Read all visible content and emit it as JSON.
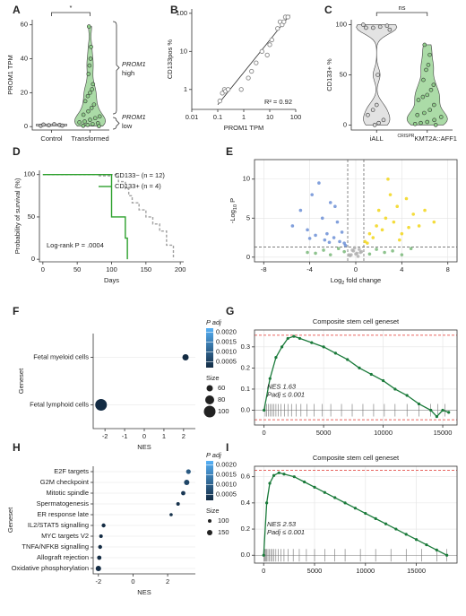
{
  "chart_data": [
    {
      "type": "violin",
      "panel": "A",
      "ylabel": "PROM1 TPM",
      "categories": [
        "Control",
        "Transformed"
      ],
      "colors": [
        "#bdbdbd",
        "#8fcf8a"
      ],
      "values": [
        [
          0.5,
          1,
          1.4,
          0.8,
          1.2,
          0.6
        ],
        [
          59,
          47,
          40,
          36,
          31,
          25,
          22,
          20,
          18,
          15,
          13,
          11,
          9,
          7,
          6,
          5,
          4,
          3,
          2.5,
          2,
          1.5,
          1,
          0.5,
          0.3
        ]
      ],
      "ylim": [
        -2,
        63
      ],
      "yticks": [
        0,
        20,
        40,
        60
      ],
      "significance": "*",
      "brace_labels": [
        [
          "PROM1",
          "high"
        ],
        [
          "PROM1",
          "low"
        ]
      ]
    },
    {
      "type": "scatter",
      "panel": "B",
      "xlabel": "PROM1 TPM",
      "ylabel": "CD133pos %",
      "x": [
        0.12,
        0.15,
        0.18,
        0.2,
        0.25,
        0.8,
        1.5,
        2,
        3,
        5,
        8,
        10,
        12,
        20,
        25,
        30,
        35,
        40,
        50
      ],
      "values": [
        0.5,
        0.8,
        1,
        0.9,
        1,
        1,
        2,
        3,
        5,
        10,
        8,
        15,
        20,
        40,
        60,
        50,
        60,
        80,
        80
      ],
      "fit": {
        "x": [
          0.1,
          60
        ],
        "y": [
          0.4,
          90
        ]
      },
      "color": "#888888",
      "xlim": [
        0.01,
        100
      ],
      "ylim": [
        0.3,
        130
      ],
      "xticks": [
        0.01,
        0.1,
        1,
        10,
        100
      ],
      "yticks": [
        1,
        10,
        100
      ],
      "log_x": true,
      "log_y": true,
      "annotation": "R² = 0.92"
    },
    {
      "type": "violin",
      "panel": "C",
      "ylabel": "CD133+ %",
      "categories": [
        "iALL",
        {
          "sup": "CRISPR",
          "text": "KMT2A::AFF1"
        }
      ],
      "colors": [
        "#d9d9d9",
        "#8fcf8a"
      ],
      "values": [
        [
          100,
          99,
          98,
          97,
          97,
          95,
          50,
          20,
          15,
          10,
          5,
          2,
          0
        ],
        [
          80,
          70,
          60,
          55,
          45,
          40,
          35,
          30,
          28,
          25,
          20,
          15,
          12,
          10,
          8,
          5,
          3,
          2,
          1,
          0
        ]
      ],
      "ylim": [
        -5,
        105
      ],
      "yticks": [
        0,
        50,
        100
      ],
      "significance": "ns"
    },
    {
      "type": "survival",
      "panel": "D",
      "xlabel": "Days",
      "ylabel": "Probability of survival (%)",
      "series": [
        {
          "name": "CD133− (n = 12)",
          "color": "#a0a0a0",
          "style": "dashed",
          "x": [
            0,
            110,
            120,
            125,
            130,
            140,
            150,
            160,
            170,
            180,
            190
          ],
          "values": [
            100,
            91.7,
            83.3,
            75,
            66.7,
            58.3,
            50,
            41.7,
            33.3,
            16.7,
            0
          ]
        },
        {
          "name": "CD133+ (n = 4)",
          "color": "#2ca02c",
          "style": "solid",
          "x": [
            0,
            100,
            120,
            123
          ],
          "values": [
            100,
            50,
            25,
            0
          ]
        }
      ],
      "xlim": [
        -5,
        205
      ],
      "ylim": [
        -3,
        105
      ],
      "xticks": [
        0,
        50,
        100,
        150,
        200
      ],
      "yticks": [
        0,
        50,
        100
      ],
      "annotation": "Log-rank P = .0004"
    },
    {
      "type": "volcano",
      "panel": "E",
      "xlabel": {
        "pre": "Log",
        "sub": "2",
        "post": " fold change"
      },
      "ylabel": {
        "pre": "-Log",
        "sub": "10",
        "post": " P"
      },
      "groups": [
        {
          "color": "#b0b0b0",
          "x": [
            -0.4,
            -0.2,
            0.1,
            0.3,
            -0.5,
            0.4,
            -0.1,
            0.2,
            0,
            -0.3,
            0.5,
            -0.6
          ],
          "y": [
            0.3,
            0.8,
            0.5,
            1.0,
            0.2,
            0.6,
            1.2,
            0.1,
            0.4,
            0.9,
            0.7,
            0.3
          ]
        },
        {
          "color": "#7ab87a",
          "x": [
            -3.5,
            -2.8,
            -2.2,
            -1.5,
            -1,
            1.2,
            1.8,
            2.5,
            3.2,
            4,
            4.8,
            -4.2
          ],
          "y": [
            0.5,
            0.9,
            0.3,
            1.1,
            0.7,
            0.4,
            1.0,
            0.6,
            0.8,
            0.3,
            1.1,
            0.6
          ]
        },
        {
          "color": "#6c8fd6",
          "x": [
            -5.5,
            -4.8,
            -4.2,
            -3.8,
            -3.2,
            -2.9,
            -2.5,
            -2.2,
            -1.9,
            -1.6,
            -1.4,
            -1.2,
            -1,
            -2.7,
            -3.5,
            -1.8,
            -2.3,
            -4,
            -0.9
          ],
          "y": [
            4,
            6,
            3.5,
            8,
            9.5,
            5,
            3,
            7,
            2.5,
            4.5,
            2,
            3.2,
            1.8,
            2.2,
            2.8,
            6.5,
            1.9,
            2.4,
            1.5
          ]
        },
        {
          "color": "#f2d61a",
          "x": [
            0.8,
            1.2,
            1.5,
            1.8,
            2,
            2.3,
            2.6,
            3,
            3.3,
            3.6,
            4,
            4.4,
            5,
            5.5,
            6,
            1,
            2.8,
            3.8,
            4.6,
            6.8
          ],
          "y": [
            2,
            3,
            2.5,
            4,
            6,
            3.5,
            5,
            8,
            4.5,
            6.5,
            3,
            7.5,
            5.5,
            4,
            6,
            1.8,
            10,
            2.2,
            3.8,
            4.5
          ]
        }
      ],
      "vlines": [
        -0.7,
        0.7
      ],
      "hline": 1.3,
      "xlim": [
        -8.8,
        8.8
      ],
      "ylim": [
        -0.6,
        12.5
      ],
      "xticks": [
        -8,
        -4,
        0,
        4,
        8
      ],
      "yticks": [
        0,
        5,
        10
      ],
      "grid": true
    },
    {
      "type": "dotplot",
      "panel": "F",
      "xlabel": "NES",
      "ylabel": "Geneset",
      "categories": [
        "Fetal myeloid cells",
        "Fetal lymphoid cells"
      ],
      "values": [
        2.1,
        -2.2
      ],
      "padj": [
        0.0002,
        0.0002
      ],
      "sizes": [
        60,
        100
      ],
      "xlim": [
        -2.6,
        2.6
      ],
      "xticks": [
        -2,
        -1,
        0,
        1,
        2
      ],
      "color_low": "#132b43",
      "color_high": "#56b1f7",
      "clim": [
        0.0002,
        0.0022
      ],
      "color_title": "P adj",
      "color_ticks": [
        {
          "value": 0.002,
          "label": "0.0020"
        },
        {
          "value": 0.0015,
          "label": "0.0015"
        },
        {
          "value": 0.001,
          "label": "0.0010"
        },
        {
          "value": 0.0005,
          "label": "0.0005"
        }
      ],
      "size_title": "Size",
      "size_ticks": [
        60,
        80,
        100
      ]
    },
    {
      "type": "gsea",
      "panel": "G",
      "title": "Composite stem cell geneset",
      "x": [
        0,
        500,
        1000,
        1500,
        2000,
        2500,
        3000,
        4000,
        5000,
        6000,
        7000,
        8000,
        9000,
        10000,
        11000,
        12000,
        13000,
        14000,
        14500,
        15000,
        15500
      ],
      "values": [
        0,
        0.15,
        0.25,
        0.3,
        0.34,
        0.35,
        0.34,
        0.32,
        0.3,
        0.27,
        0.24,
        0.2,
        0.17,
        0.14,
        0.1,
        0.07,
        0.03,
        0,
        -0.03,
        0,
        -0.01
      ],
      "hits": [
        100,
        200,
        350,
        500,
        650,
        800,
        1000,
        1200,
        1400,
        1700,
        2000,
        2300,
        2700,
        3100,
        3600,
        4200,
        4900,
        5600,
        6500,
        7400,
        8300,
        9200,
        10100,
        11000,
        12000,
        13000,
        14000,
        14600,
        15200
      ],
      "hlines": [
        0.355,
        -0.045
      ],
      "color": "#1a7a3a",
      "xlim": [
        -800,
        16200
      ],
      "ylim": [
        -0.07,
        0.38
      ],
      "xticks": [
        0,
        5000,
        10000,
        15000
      ],
      "yticks": [
        {
          "value": 0,
          "label": "0.0"
        },
        0.1,
        0.2,
        0.3
      ],
      "grid": true,
      "annotations": [
        "NES 1.63",
        "Padj ≤ 0.001"
      ]
    },
    {
      "type": "dotplot",
      "panel": "H",
      "xlabel": "NES",
      "ylabel": "Geneset",
      "categories": [
        "E2F targets",
        "G2M checkpoint",
        "Mitotic spindle",
        "Spermatogenesis",
        "ER response late",
        "IL2/STAT5 signalling",
        "MYC targets V2",
        "TNFA/NFKB signalling",
        "Allograft rejection",
        "Oxidative phosphorylation"
      ],
      "values": [
        3.2,
        3.1,
        2.9,
        2.6,
        2.2,
        -1.7,
        -1.85,
        -1.9,
        -1.95,
        -2.0
      ],
      "padj": [
        0.0009,
        0.0006,
        0.0004,
        0.0003,
        0.0003,
        0.0002,
        0.0002,
        0.0002,
        0.0002,
        0.0002
      ],
      "sizes": [
        130,
        150,
        120,
        100,
        90,
        110,
        100,
        110,
        120,
        150
      ],
      "xlim": [
        -2.3,
        3.6
      ],
      "xticks": [
        -2,
        0,
        2
      ],
      "color_low": "#132b43",
      "color_high": "#56b1f7",
      "clim": [
        0.0002,
        0.0022
      ],
      "color_title": "P adj",
      "color_ticks": [
        {
          "value": 0.002,
          "label": "0.0020"
        },
        {
          "value": 0.0015,
          "label": "0.0015"
        },
        {
          "value": 0.001,
          "label": "0.0010"
        },
        {
          "value": 0.0005,
          "label": "0.0005"
        }
      ],
      "size_title": "Size",
      "size_ticks": [
        100,
        150
      ]
    },
    {
      "type": "gsea",
      "panel": "I",
      "title": "Composite stem cell geneset",
      "x": [
        0,
        300,
        600,
        1000,
        1500,
        2000,
        3000,
        4000,
        5000,
        6000,
        7000,
        8000,
        9000,
        10000,
        11000,
        12000,
        13000,
        14000,
        15000,
        16000,
        17000,
        18000
      ],
      "values": [
        0,
        0.4,
        0.55,
        0.61,
        0.63,
        0.62,
        0.6,
        0.56,
        0.52,
        0.48,
        0.44,
        0.4,
        0.36,
        0.32,
        0.28,
        0.24,
        0.2,
        0.16,
        0.12,
        0.08,
        0.04,
        0
      ],
      "hits": [
        50,
        120,
        200,
        300,
        420,
        550,
        700,
        850,
        1000,
        1200,
        1450,
        1700,
        2000,
        2400,
        2900,
        3500,
        4200,
        5000,
        6000,
        7000,
        8000,
        9500,
        11000,
        12500,
        14000,
        15500,
        17000,
        18000
      ],
      "hlines": [
        0.65
      ],
      "color": "#1a7a3a",
      "xlim": [
        -900,
        19000
      ],
      "ylim": [
        -0.06,
        0.68
      ],
      "xticks": [
        0,
        5000,
        10000,
        15000
      ],
      "yticks": [
        {
          "value": 0,
          "label": "0.0"
        },
        0.2,
        0.4,
        0.6
      ],
      "grid": true,
      "annotations": [
        "NES 2.53",
        "Padj ≤ 0.001"
      ]
    }
  ]
}
